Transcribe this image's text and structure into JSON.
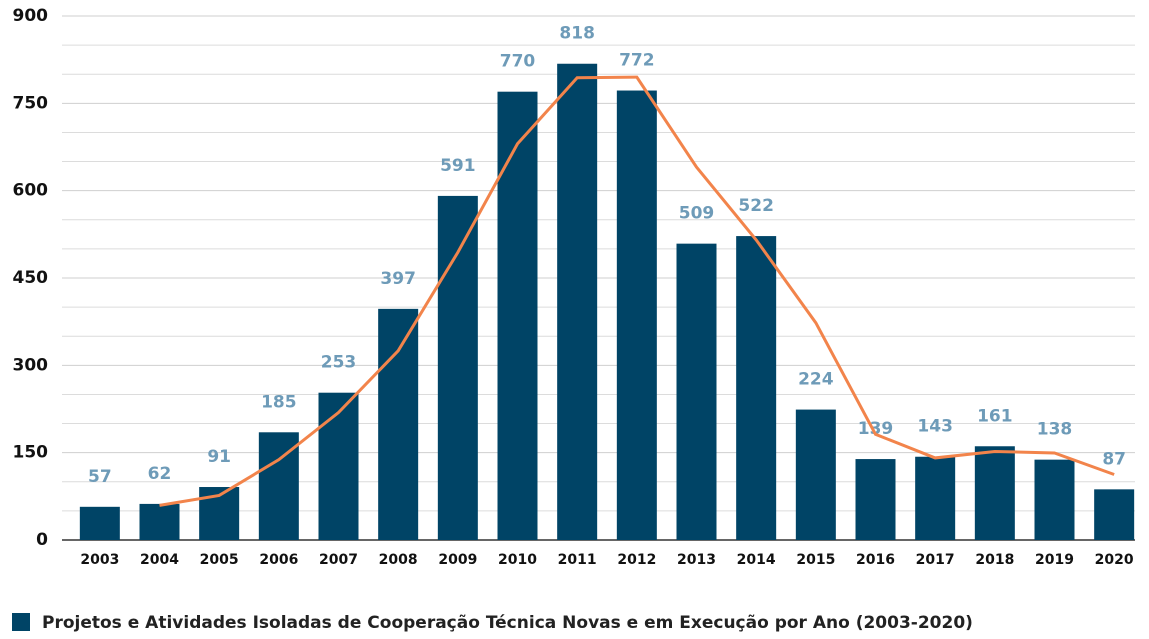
{
  "chart_data": {
    "type": "bar",
    "categories": [
      "2003",
      "2004",
      "2005",
      "2006",
      "2007",
      "2008",
      "2009",
      "2010",
      "2011",
      "2012",
      "2013",
      "2014",
      "2015",
      "2016",
      "2017",
      "2018",
      "2019",
      "2020"
    ],
    "series": [
      {
        "name": "Projetos e Atividades Isoladas de Cooperação Técnica Novas e em Execução por Ano (2003-2020)",
        "type": "bar",
        "color": "#004466",
        "values": [
          57,
          62,
          91,
          185,
          253,
          397,
          591,
          770,
          818,
          772,
          509,
          522,
          224,
          139,
          143,
          161,
          138,
          87
        ]
      },
      {
        "type": "line",
        "color": "#f2844b",
        "values": [
          null,
          59.5,
          76.5,
          138,
          219,
          325,
          494,
          680.5,
          794,
          795,
          640.5,
          515.5,
          373,
          181.5,
          141,
          152,
          149.5,
          112.5
        ]
      }
    ],
    "ylim": [
      0,
      900
    ],
    "yticks": [
      0,
      150,
      300,
      450,
      600,
      750,
      900
    ],
    "minor_yticks": [
      50,
      100,
      200,
      250,
      350,
      400,
      500,
      550,
      650,
      700,
      800,
      850
    ],
    "grid": true,
    "label_color": "#6e9bb8"
  }
}
